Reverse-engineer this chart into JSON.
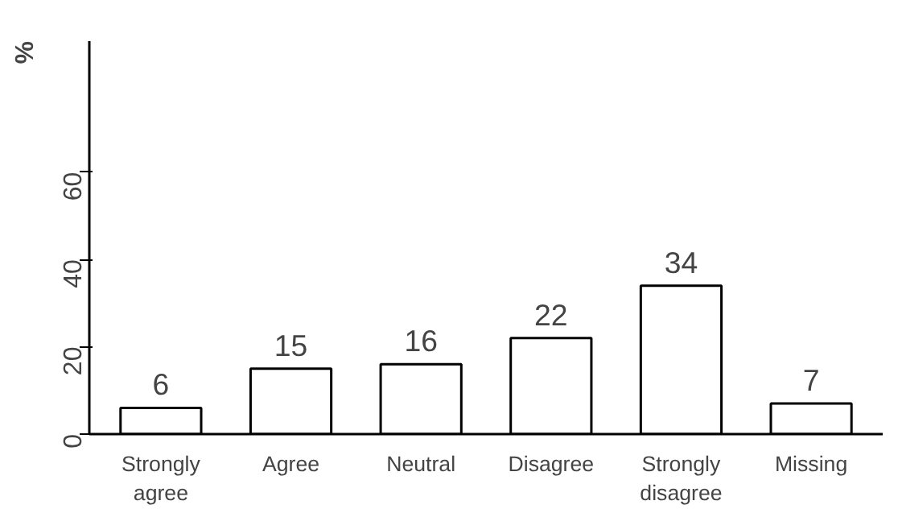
{
  "chart_data": {
    "type": "bar",
    "ylabel": "%",
    "categories": [
      "Strongly agree",
      "Agree",
      "Neutral",
      "Disagree",
      "Strongly disagree",
      "Missing"
    ],
    "values": [
      6,
      15,
      16,
      22,
      34,
      7
    ],
    "color": "#ffffff",
    "ylim": [
      0,
      90
    ],
    "yticks": [
      0,
      20,
      40,
      60
    ],
    "grid": false,
    "data_labels": true
  }
}
